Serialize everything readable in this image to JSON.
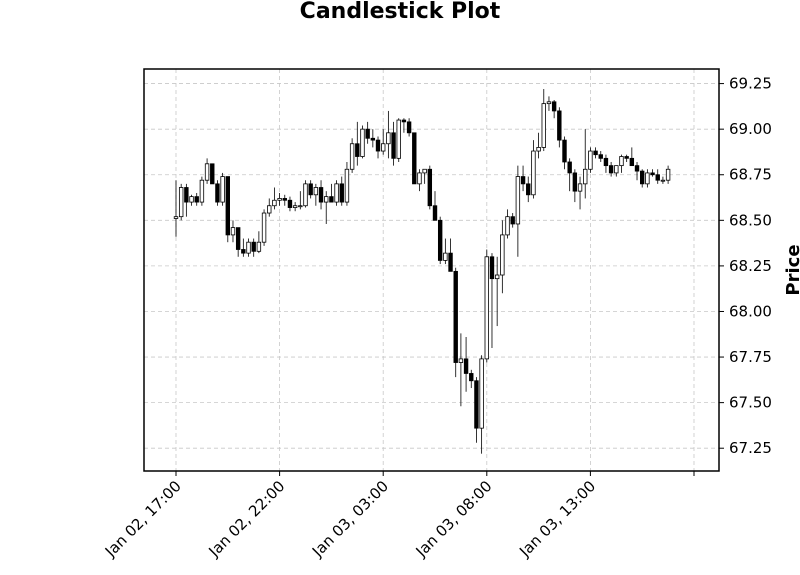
{
  "chart_data": {
    "type": "candlestick",
    "title": "Candlestick Plot",
    "ylabel": "Price",
    "xlabel": "",
    "ylim": [
      67.125,
      69.33
    ],
    "y_ticks": [
      "67.25",
      "67.50",
      "67.75",
      "68.00",
      "68.25",
      "68.50",
      "68.75",
      "69.00",
      "69.25"
    ],
    "x_ticks": [
      {
        "label": "Jan 02, 17:00",
        "index": 0
      },
      {
        "label": "Jan 02, 22:00",
        "index": 20
      },
      {
        "label": "Jan 03, 03:00",
        "index": 40
      },
      {
        "label": "Jan 03, 08:00",
        "index": 60
      },
      {
        "label": "Jan 03, 13:00",
        "index": 80
      },
      {
        "label": "",
        "index": 100
      }
    ],
    "grid": true,
    "y_axis_side": "right",
    "colors": {
      "up": "#ffffff",
      "down": "#000000",
      "edge": "#000000",
      "grid": "#c8c8c8"
    },
    "candles": [
      [
        68.51,
        68.72,
        68.41,
        68.52
      ],
      [
        68.52,
        68.7,
        68.5,
        68.68
      ],
      [
        68.68,
        68.7,
        68.52,
        68.6
      ],
      [
        68.6,
        68.64,
        68.58,
        68.63
      ],
      [
        68.63,
        68.65,
        68.58,
        68.6
      ],
      [
        68.6,
        68.74,
        68.58,
        68.72
      ],
      [
        68.72,
        68.84,
        68.7,
        68.81
      ],
      [
        68.81,
        68.81,
        68.7,
        68.7
      ],
      [
        68.7,
        68.72,
        68.58,
        68.6
      ],
      [
        68.6,
        68.76,
        68.58,
        68.74
      ],
      [
        68.74,
        68.74,
        68.38,
        68.42
      ],
      [
        68.42,
        68.5,
        68.38,
        68.46
      ],
      [
        68.46,
        68.46,
        68.3,
        68.34
      ],
      [
        68.34,
        68.4,
        68.3,
        68.32
      ],
      [
        68.32,
        68.4,
        68.3,
        68.38
      ],
      [
        68.38,
        68.4,
        68.3,
        68.33
      ],
      [
        68.33,
        68.44,
        68.32,
        68.38
      ],
      [
        68.38,
        68.56,
        68.36,
        68.54
      ],
      [
        68.54,
        68.62,
        68.52,
        68.58
      ],
      [
        68.58,
        68.68,
        68.56,
        68.61
      ],
      [
        68.61,
        68.65,
        68.58,
        68.62
      ],
      [
        68.62,
        68.64,
        68.58,
        68.61
      ],
      [
        68.61,
        68.63,
        68.55,
        68.57
      ],
      [
        68.57,
        68.6,
        68.55,
        68.58
      ],
      [
        68.58,
        68.66,
        68.56,
        68.58
      ],
      [
        68.58,
        68.72,
        68.57,
        68.7
      ],
      [
        68.7,
        68.72,
        68.62,
        68.64
      ],
      [
        68.64,
        68.7,
        68.58,
        68.68
      ],
      [
        68.68,
        68.72,
        68.56,
        68.6
      ],
      [
        68.6,
        68.66,
        68.48,
        68.63
      ],
      [
        68.63,
        68.7,
        68.6,
        68.6
      ],
      [
        68.6,
        68.72,
        68.58,
        68.7
      ],
      [
        68.7,
        68.74,
        68.58,
        68.6
      ],
      [
        68.6,
        68.82,
        68.58,
        68.78
      ],
      [
        68.78,
        68.95,
        68.76,
        68.92
      ],
      [
        68.92,
        69.04,
        68.8,
        68.85
      ],
      [
        68.85,
        69.02,
        68.84,
        69.0
      ],
      [
        69.0,
        69.04,
        68.92,
        68.95
      ],
      [
        68.95,
        69.0,
        68.9,
        68.94
      ],
      [
        68.94,
        68.96,
        68.84,
        68.88
      ],
      [
        68.88,
        69.0,
        68.86,
        68.92
      ],
      [
        68.92,
        69.1,
        68.84,
        68.98
      ],
      [
        68.98,
        69.04,
        68.8,
        68.84
      ],
      [
        68.84,
        69.06,
        68.82,
        69.05
      ],
      [
        69.05,
        69.06,
        68.98,
        69.04
      ],
      [
        69.04,
        69.06,
        68.96,
        68.98
      ],
      [
        68.98,
        68.98,
        68.7,
        68.7
      ],
      [
        68.7,
        68.78,
        68.66,
        68.76
      ],
      [
        68.76,
        68.78,
        68.7,
        68.78
      ],
      [
        68.78,
        68.8,
        68.56,
        68.58
      ],
      [
        68.58,
        68.66,
        68.5,
        68.5
      ],
      [
        68.5,
        68.52,
        68.26,
        68.28
      ],
      [
        68.28,
        68.4,
        68.26,
        68.32
      ],
      [
        68.32,
        68.4,
        68.22,
        68.22
      ],
      [
        68.22,
        68.24,
        67.64,
        67.72
      ],
      [
        67.72,
        67.88,
        67.48,
        67.74
      ],
      [
        67.74,
        67.86,
        67.56,
        67.66
      ],
      [
        67.66,
        67.68,
        67.58,
        67.62
      ],
      [
        67.62,
        67.64,
        67.28,
        67.36
      ],
      [
        67.36,
        67.76,
        67.22,
        67.74
      ],
      [
        67.74,
        68.34,
        67.72,
        68.3
      ],
      [
        68.3,
        68.32,
        67.8,
        68.18
      ],
      [
        68.18,
        68.3,
        67.92,
        68.2
      ],
      [
        68.2,
        68.5,
        68.1,
        68.42
      ],
      [
        68.42,
        68.56,
        68.4,
        68.52
      ],
      [
        68.52,
        68.54,
        68.46,
        68.48
      ],
      [
        68.48,
        68.8,
        68.3,
        68.74
      ],
      [
        68.74,
        68.8,
        68.66,
        68.7
      ],
      [
        68.7,
        68.74,
        68.6,
        68.64
      ],
      [
        68.64,
        68.94,
        68.62,
        68.88
      ],
      [
        68.88,
        68.98,
        68.84,
        68.9
      ],
      [
        68.9,
        69.22,
        68.88,
        69.14
      ],
      [
        69.14,
        69.18,
        69.1,
        69.15
      ],
      [
        69.15,
        69.16,
        69.06,
        69.1
      ],
      [
        69.1,
        69.12,
        68.9,
        68.94
      ],
      [
        68.94,
        68.96,
        68.78,
        68.82
      ],
      [
        68.82,
        68.84,
        68.66,
        68.76
      ],
      [
        68.76,
        68.78,
        68.6,
        68.66
      ],
      [
        68.66,
        68.74,
        68.56,
        68.7
      ],
      [
        68.7,
        69.0,
        68.62,
        68.78
      ],
      [
        68.78,
        68.9,
        68.76,
        68.88
      ],
      [
        68.88,
        68.9,
        68.84,
        68.86
      ],
      [
        68.86,
        68.88,
        68.82,
        68.84
      ],
      [
        68.84,
        68.86,
        68.76,
        68.8
      ],
      [
        68.8,
        68.82,
        68.74,
        68.76
      ],
      [
        68.76,
        68.8,
        68.74,
        68.8
      ],
      [
        68.8,
        68.86,
        68.76,
        68.85
      ],
      [
        68.85,
        68.86,
        68.82,
        68.84
      ],
      [
        68.84,
        68.9,
        68.82,
        68.8
      ],
      [
        68.8,
        68.82,
        68.72,
        68.77
      ],
      [
        68.77,
        68.78,
        68.68,
        68.7
      ],
      [
        68.7,
        68.78,
        68.68,
        68.76
      ],
      [
        68.76,
        68.78,
        68.74,
        68.75
      ],
      [
        68.75,
        68.78,
        68.7,
        68.72
      ],
      [
        68.72,
        68.74,
        68.7,
        68.72
      ],
      [
        68.72,
        68.8,
        68.7,
        68.78
      ]
    ]
  }
}
